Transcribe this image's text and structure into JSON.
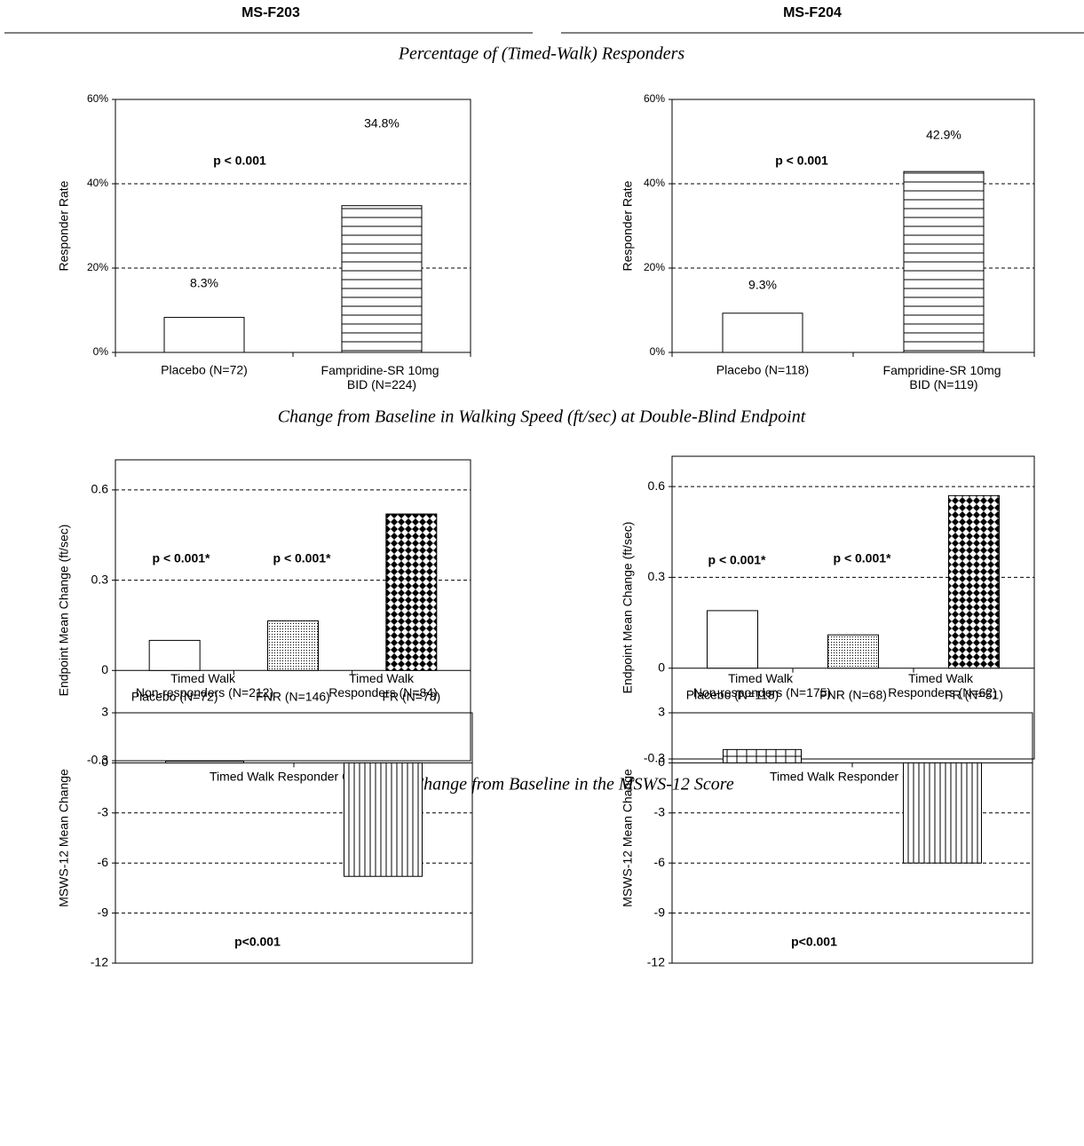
{
  "columns": [
    "MS-F203",
    "MS-F204"
  ],
  "section_titles": [
    "Percentage of (Timed-Walk) Responders",
    "Change from Baseline in Walking Speed (ft/sec) at Double-Blind Endpoint",
    "Average Change from Baseline in the MSWS-12 Score"
  ],
  "chart_data": [
    {
      "type": "bar",
      "ylabel": "Responder Rate",
      "categories": [
        "Placebo (N=72)",
        "Fampridine-SR 10mg\nBID  (N=224)"
      ],
      "values": [
        8.3,
        34.8
      ],
      "value_labels": [
        "8.3%",
        "34.8%"
      ],
      "ylim": [
        0,
        60
      ],
      "yticks": [
        {
          "value": 0,
          "label": "0%"
        },
        {
          "value": 20,
          "label": "20%"
        },
        {
          "value": 40,
          "label": "40%"
        },
        {
          "value": 60,
          "label": "60%"
        }
      ],
      "annotations": [
        "p < 0.001"
      ],
      "grid": true
    },
    {
      "type": "bar",
      "ylabel": "Responder Rate",
      "categories": [
        "Placebo (N=118)",
        "Fampridine-SR 10mg\nBID  (N=119)"
      ],
      "values": [
        9.3,
        42.9
      ],
      "value_labels": [
        "9.3%",
        "42.9%"
      ],
      "ylim": [
        0,
        60
      ],
      "yticks": [
        {
          "value": 0,
          "label": "0%"
        },
        {
          "value": 20,
          "label": "20%"
        },
        {
          "value": 40,
          "label": "40%"
        },
        {
          "value": 60,
          "label": "60%"
        }
      ],
      "annotations": [
        "p < 0.001"
      ],
      "grid": true
    },
    {
      "type": "bar",
      "ylabel": "Endpoint Mean Change (ft/sec)",
      "xlabel": "Timed Walk Responder Group",
      "categories": [
        "Placebo (N=72)",
        "FNR (N=146)",
        "FR (N=78)"
      ],
      "values": [
        0.1,
        0.165,
        0.52
      ],
      "ylim": [
        -0.3,
        0.7
      ],
      "yticks": [
        -0.3,
        0,
        0.3,
        0.6
      ],
      "annotations": [
        "p < 0.001*",
        "p < 0.001*"
      ],
      "grid": true
    },
    {
      "type": "bar",
      "ylabel": "Endpoint Mean Change (ft/sec)",
      "xlabel": "Timed Walk Responder Group",
      "categories": [
        "Placebo (N=118)",
        "FNR (N=68)",
        "FR (N=51)"
      ],
      "values": [
        0.19,
        0.11,
        0.57
      ],
      "ylim": [
        -0.3,
        0.7
      ],
      "yticks": [
        -0.3,
        0,
        0.3,
        0.6
      ],
      "annotations": [
        "p < 0.001*",
        "p < 0.001*"
      ],
      "grid": true
    },
    {
      "type": "bar",
      "ylabel": "MSWS-12 Mean Change",
      "categories": [
        "Timed Walk\nNon-responders (N=212)",
        "Timed Walk\nResponders (N=84)"
      ],
      "values": [
        0.1,
        -6.8
      ],
      "ylim": [
        -12,
        3
      ],
      "yticks": [
        -12,
        -9,
        -6,
        -3,
        0,
        3
      ],
      "annotations": [
        "p<0.001"
      ],
      "grid": true
    },
    {
      "type": "bar",
      "ylabel": "MSWS-12 Mean Change",
      "categories": [
        "Timed Walk\nNon-responders (N=175)",
        "Timed Walk\nResponders (N=62)"
      ],
      "values": [
        0.8,
        -6.0
      ],
      "ylim": [
        -12,
        3
      ],
      "yticks": [
        -12,
        -9,
        -6,
        -3,
        0,
        3
      ],
      "annotations": [
        "p<0.001"
      ],
      "grid": true
    }
  ]
}
